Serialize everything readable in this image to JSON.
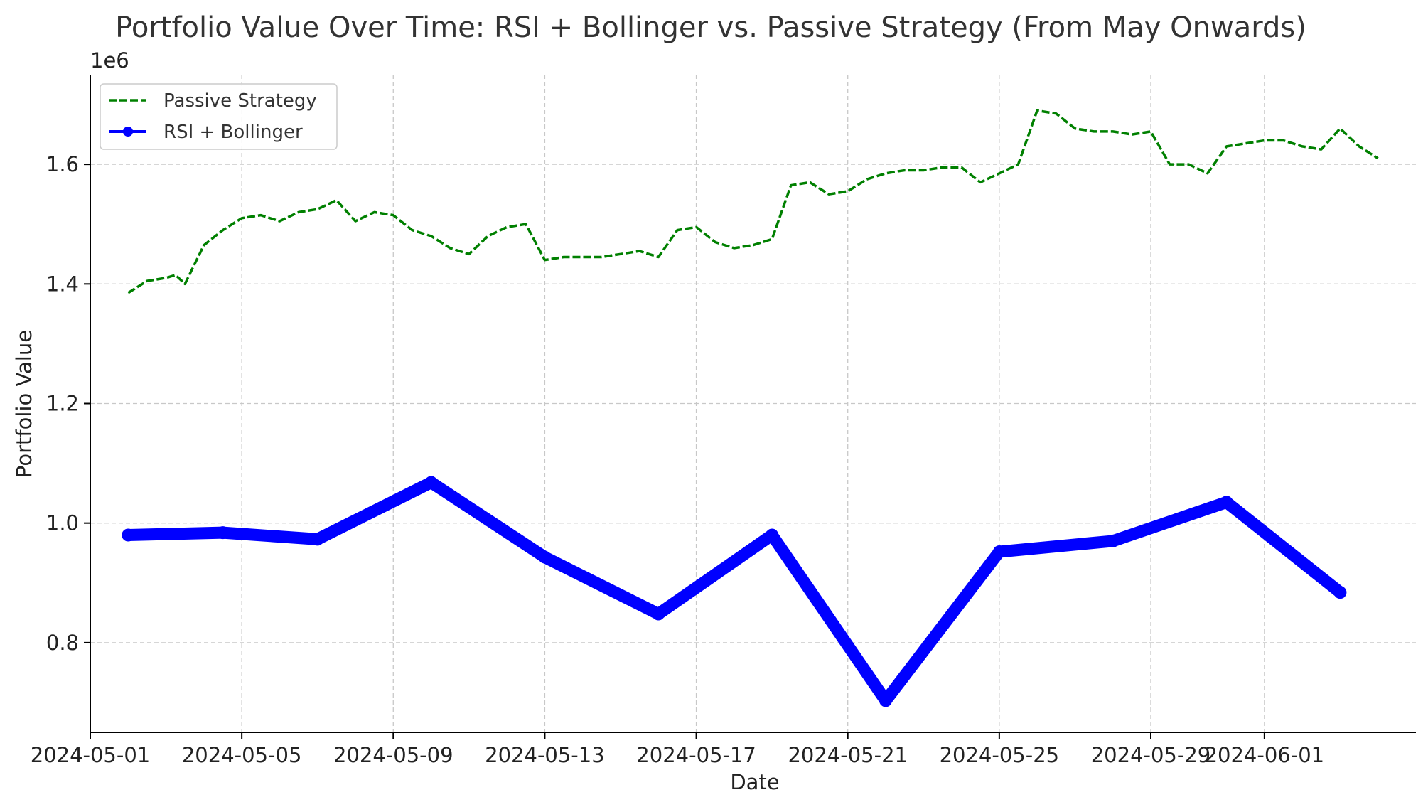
{
  "chart_data": {
    "type": "line",
    "title": "Portfolio Value Over Time: RSI + Bollinger vs. Passive Strategy (From May Onwards)",
    "xlabel": "Date",
    "ylabel": "Portfolio Value",
    "y_offset_label": "1e6",
    "xlim": [
      "2024-05-01",
      "2024-06-05"
    ],
    "ylim": [
      0.65,
      1.75
    ],
    "x_ticks": [
      "2024-05-01",
      "2024-05-05",
      "2024-05-09",
      "2024-05-13",
      "2024-05-17",
      "2024-05-21",
      "2024-05-25",
      "2024-05-29",
      "2024-06-01"
    ],
    "y_ticks": [
      0.8,
      1.0,
      1.2,
      1.4,
      1.6
    ],
    "y_tick_labels": [
      "0.8",
      "1.0",
      "1.2",
      "1.4",
      "1.6"
    ],
    "grid": true,
    "legend_position": "upper-left",
    "series": [
      {
        "name": "Passive Strategy",
        "style": "dashed",
        "color": "#008000",
        "x": [
          "2024-05-02",
          "2024-05-02T12:00",
          "2024-05-03",
          "2024-05-03T06:00",
          "2024-05-03T12:00",
          "2024-05-04",
          "2024-05-04T12:00",
          "2024-05-05",
          "2024-05-05T12:00",
          "2024-05-06",
          "2024-05-06T12:00",
          "2024-05-07",
          "2024-05-07T12:00",
          "2024-05-08",
          "2024-05-08T12:00",
          "2024-05-09",
          "2024-05-09T12:00",
          "2024-05-10",
          "2024-05-10T12:00",
          "2024-05-11",
          "2024-05-11T12:00",
          "2024-05-12",
          "2024-05-12T12:00",
          "2024-05-13",
          "2024-05-13T12:00",
          "2024-05-14",
          "2024-05-14T12:00",
          "2024-05-15",
          "2024-05-15T12:00",
          "2024-05-16",
          "2024-05-16T12:00",
          "2024-05-17",
          "2024-05-17T12:00",
          "2024-05-18",
          "2024-05-18T12:00",
          "2024-05-19",
          "2024-05-19T12:00",
          "2024-05-20",
          "2024-05-20T12:00",
          "2024-05-21",
          "2024-05-21T12:00",
          "2024-05-22",
          "2024-05-22T12:00",
          "2024-05-23",
          "2024-05-23T12:00",
          "2024-05-24",
          "2024-05-24T12:00",
          "2024-05-25",
          "2024-05-25T12:00",
          "2024-05-26",
          "2024-05-26T12:00",
          "2024-05-27",
          "2024-05-27T12:00",
          "2024-05-28",
          "2024-05-28T12:00",
          "2024-05-29",
          "2024-05-29T12:00",
          "2024-05-30",
          "2024-05-30T12:00",
          "2024-05-31",
          "2024-05-31T12:00",
          "2024-06-01",
          "2024-06-01T12:00",
          "2024-06-02",
          "2024-06-02T12:00",
          "2024-06-03",
          "2024-06-03T12:00",
          "2024-06-04"
        ],
        "values": [
          1.385,
          1.405,
          1.41,
          1.415,
          1.4,
          1.465,
          1.49,
          1.51,
          1.515,
          1.505,
          1.52,
          1.525,
          1.54,
          1.505,
          1.52,
          1.515,
          1.49,
          1.48,
          1.46,
          1.45,
          1.48,
          1.495,
          1.5,
          1.44,
          1.445,
          1.445,
          1.445,
          1.45,
          1.455,
          1.445,
          1.49,
          1.495,
          1.47,
          1.46,
          1.465,
          1.475,
          1.565,
          1.57,
          1.55,
          1.555,
          1.575,
          1.585,
          1.59,
          1.59,
          1.595,
          1.595,
          1.57,
          1.585,
          1.6,
          1.69,
          1.685,
          1.66,
          1.655,
          1.655,
          1.65,
          1.655,
          1.6,
          1.6,
          1.585,
          1.63,
          1.635,
          1.64,
          1.64,
          1.63,
          1.625,
          1.66,
          1.63,
          1.61
        ]
      },
      {
        "name": "RSI + Bollinger",
        "style": "solid-marker",
        "color": "#0000ff",
        "x": [
          "2024-05-02",
          "2024-05-04T12:00",
          "2024-05-07",
          "2024-05-10",
          "2024-05-13",
          "2024-05-16",
          "2024-05-19",
          "2024-05-22",
          "2024-05-25",
          "2024-05-28",
          "2024-05-31",
          "2024-06-03"
        ],
        "values": [
          0.98,
          0.984,
          0.973,
          1.068,
          0.943,
          0.848,
          0.98,
          0.703,
          0.952,
          0.97,
          1.035,
          0.884
        ]
      }
    ]
  }
}
